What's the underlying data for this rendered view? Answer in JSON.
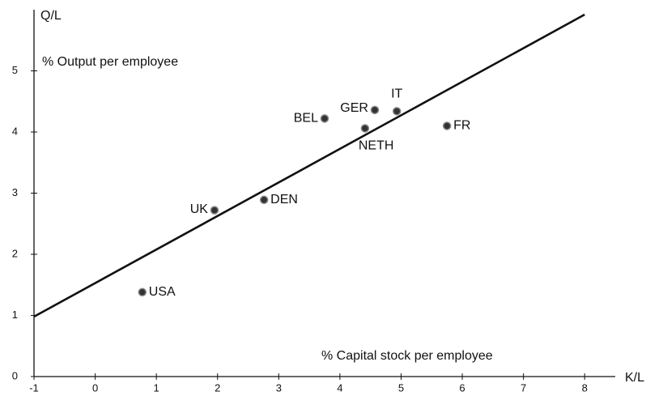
{
  "chart_data": {
    "type": "scatter",
    "y_axis_label": "Q/L",
    "x_axis_label": "K/L",
    "y_description": "% Output per employee",
    "x_description": "% Capital stock per employee",
    "points": {
      "labels": [
        "USA",
        "UK",
        "DEN",
        "BEL",
        "GER",
        "IT",
        "NETH",
        "FR"
      ],
      "x": [
        0.77,
        1.95,
        2.76,
        3.75,
        4.57,
        4.93,
        4.41,
        5.75
      ],
      "y": [
        1.38,
        2.72,
        2.89,
        4.22,
        4.36,
        4.34,
        4.06,
        4.1
      ]
    },
    "line": {
      "x": [
        -1,
        8
      ],
      "y": [
        0.98,
        5.92
      ]
    },
    "xlim": [
      -1,
      8.5
    ],
    "ylim": [
      0,
      6
    ],
    "xticks": [
      -1,
      0,
      1,
      2,
      3,
      4,
      5,
      6,
      7,
      8
    ],
    "yticks": [
      0,
      1,
      2,
      3,
      4,
      5
    ]
  }
}
